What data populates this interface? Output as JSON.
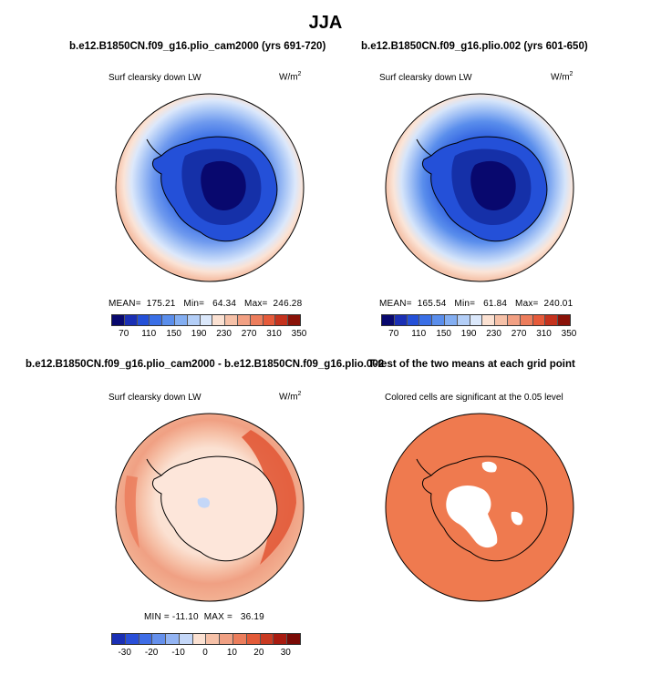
{
  "figure": {
    "title": "JJA"
  },
  "panels": {
    "top_left": {
      "title": "b.e12.B1850CN.f09_g16.plio_cam2000 (yrs 691-720)",
      "variable": "Surf clearsky down LW",
      "units_base": "W/m",
      "units_exp": "2",
      "stats": "MEAN=  175.21   Min=   64.34   Max=  246.28"
    },
    "top_right": {
      "title": "b.e12.B1850CN.f09_g16.plio.002 (yrs 601-650)",
      "variable": "Surf clearsky down LW",
      "units_base": "W/m",
      "units_exp": "2",
      "stats": "MEAN=  165.54   Min=   61.84   Max=  240.01"
    },
    "bottom_left": {
      "title": "b.e12.B1850CN.f09_g16.plio_cam2000 - b.e12.B1850CN.f09_g16.plio.002",
      "variable": "Surf clearsky down LW",
      "units_base": "W/m",
      "units_exp": "2",
      "stats": "MIN = -11.10  MAX =   36.19"
    },
    "bottom_right": {
      "title": "T-test of the two means at each grid point",
      "subtitle": "Colored cells are significant at the 0.05 level"
    }
  },
  "chart_data": [
    {
      "type": "heatmap",
      "projection": "south-polar-stereographic",
      "title": "b.e12.B1850CN.f09_g16.plio_cam2000 (yrs 691-720)",
      "variable": "Surf clearsky down LW",
      "units": "W/m2",
      "mean": 175.21,
      "min": 64.34,
      "max": 246.28,
      "colorbar_ticks": [
        70,
        110,
        150,
        190,
        230,
        270,
        310,
        350
      ]
    },
    {
      "type": "heatmap",
      "projection": "south-polar-stereographic",
      "title": "b.e12.B1850CN.f09_g16.plio.002 (yrs 601-650)",
      "variable": "Surf clearsky down LW",
      "units": "W/m2",
      "mean": 165.54,
      "min": 61.84,
      "max": 240.01,
      "colorbar_ticks": [
        70,
        110,
        150,
        190,
        230,
        270,
        310,
        350
      ]
    },
    {
      "type": "heatmap",
      "projection": "south-polar-stereographic",
      "title": "b.e12.B1850CN.f09_g16.plio_cam2000 - b.e12.B1850CN.f09_g16.plio.002",
      "variable": "Surf clearsky down LW",
      "units": "W/m2",
      "min": -11.1,
      "max": 36.19,
      "colorbar_ticks": [
        -30,
        -20,
        -10,
        0,
        10,
        20,
        30
      ]
    },
    {
      "type": "heatmap",
      "projection": "south-polar-stereographic",
      "title": "T-test of the two means at each grid point",
      "subtitle": "Colored cells are significant at the 0.05 level",
      "significance_level": 0.05
    }
  ],
  "colors": {
    "abs_bar": [
      "#08086e",
      "#1a2fb4",
      "#2450d8",
      "#3a6fe6",
      "#5a8eec",
      "#83aef2",
      "#b3cef7",
      "#dbe8fb",
      "#fbe1d2",
      "#f6c1a8",
      "#f2a083",
      "#ed7d5c",
      "#e65a3a",
      "#c5321d",
      "#8a1208"
    ],
    "diff_bar": [
      "#1a2fb4",
      "#2a4fd8",
      "#3f6de6",
      "#6590ec",
      "#93b4f3",
      "#c4d7f8",
      "#fbe1d2",
      "#f6c1a8",
      "#f0a083",
      "#eb7d5c",
      "#e25a38",
      "#c93a22",
      "#a81b10",
      "#7a0a05"
    ],
    "land_a": [
      "#08086e",
      "#1530a8",
      "#2450d8"
    ],
    "significant": "#ef7a4f"
  }
}
